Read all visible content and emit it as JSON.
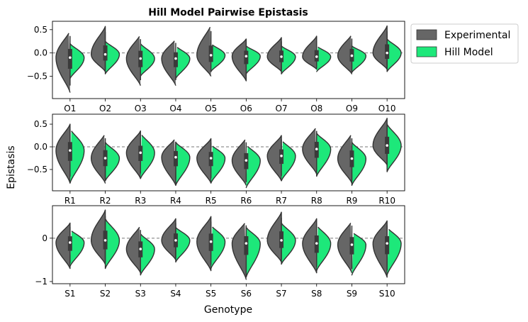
{
  "figure": {
    "title": "Hill Model Pairwise Epistasis",
    "ylabel": "Epistasis",
    "xlabel": "Genotype"
  },
  "legend": {
    "placement": "upper-right-outside",
    "entries": [
      {
        "label": "Experimental",
        "color": "#666666"
      },
      {
        "label": "Hill Model",
        "color": "#1de87a"
      }
    ]
  },
  "chart_data": [
    {
      "type": "violin",
      "split": true,
      "ylim": [
        -0.98,
        0.68
      ],
      "yticks": [
        -0.5,
        0.0,
        0.5
      ],
      "ytick_labels": [
        "−0.5",
        "0.0",
        "0.5"
      ],
      "reference_line": 0,
      "categories": [
        "O1",
        "O2",
        "O3",
        "O4",
        "O5",
        "O6",
        "O7",
        "O8",
        "O9",
        "O10"
      ],
      "series": [
        {
          "name": "Experimental",
          "medians": [
            -0.1,
            -0.03,
            -0.12,
            -0.12,
            -0.05,
            -0.07,
            -0.08,
            -0.08,
            -0.06,
            0.0
          ],
          "mins": [
            -0.85,
            -0.4,
            -0.7,
            -0.7,
            -0.5,
            -0.6,
            -0.4,
            -0.35,
            -0.45,
            -0.35
          ],
          "maxs": [
            0.48,
            0.57,
            0.4,
            0.3,
            0.6,
            0.3,
            0.33,
            0.36,
            0.4,
            0.58
          ]
        },
        {
          "name": "Hill Model",
          "medians": [
            -0.1,
            -0.03,
            -0.12,
            -0.12,
            -0.05,
            -0.07,
            -0.08,
            -0.08,
            -0.06,
            0.0
          ],
          "mins": [
            -0.55,
            -0.45,
            -0.5,
            -0.55,
            -0.4,
            -0.45,
            -0.45,
            -0.4,
            -0.42,
            -0.4
          ],
          "maxs": [
            0.2,
            0.25,
            0.2,
            0.15,
            0.2,
            0.15,
            0.15,
            0.15,
            0.15,
            0.3
          ]
        }
      ]
    },
    {
      "type": "violin",
      "split": true,
      "ylim": [
        -0.97,
        0.72
      ],
      "yticks": [
        -0.5,
        0.0,
        0.5
      ],
      "ytick_labels": [
        "−0.5",
        "0.0",
        "0.5"
      ],
      "reference_line": 0,
      "categories": [
        "R1",
        "R2",
        "R3",
        "R4",
        "R5",
        "R6",
        "R7",
        "R8",
        "R9",
        "R10"
      ],
      "series": [
        {
          "name": "Experimental",
          "medians": [
            -0.08,
            -0.25,
            -0.13,
            -0.23,
            -0.25,
            -0.3,
            -0.2,
            -0.05,
            -0.26,
            0.03
          ],
          "mins": [
            -0.8,
            -0.8,
            -0.7,
            -0.85,
            -0.8,
            -0.85,
            -0.75,
            -0.6,
            -0.8,
            -0.4
          ],
          "maxs": [
            0.5,
            0.3,
            0.35,
            0.2,
            0.18,
            0.2,
            0.25,
            0.45,
            0.3,
            0.63
          ]
        },
        {
          "name": "Hill Model",
          "medians": [
            -0.08,
            -0.25,
            -0.13,
            -0.23,
            -0.25,
            -0.3,
            -0.2,
            -0.05,
            -0.26,
            0.03
          ],
          "mins": [
            -0.8,
            -0.75,
            -0.7,
            -0.85,
            -0.8,
            -0.9,
            -0.75,
            -0.65,
            -0.85,
            -0.55
          ],
          "maxs": [
            0.4,
            0.1,
            0.3,
            0.1,
            0.05,
            0.05,
            0.15,
            0.3,
            0.1,
            0.5
          ]
        }
      ]
    },
    {
      "type": "violin",
      "split": true,
      "ylim": [
        -1.05,
        0.75
      ],
      "yticks": [
        -1,
        0
      ],
      "ytick_labels": [
        "−1",
        "0"
      ],
      "reference_line": 0,
      "categories": [
        "S1",
        "S2",
        "S3",
        "S4",
        "S5",
        "S6",
        "S7",
        "S8",
        "S9",
        "S10"
      ],
      "series": [
        {
          "name": "Experimental",
          "medians": [
            -0.1,
            -0.05,
            -0.25,
            -0.05,
            -0.08,
            -0.12,
            -0.05,
            -0.12,
            -0.15,
            -0.12
          ],
          "mins": [
            -0.7,
            -0.6,
            -0.8,
            -0.5,
            -0.75,
            -0.95,
            -0.55,
            -0.8,
            -0.8,
            -0.9
          ],
          "maxs": [
            0.35,
            0.65,
            0.3,
            0.45,
            0.5,
            0.4,
            0.6,
            0.45,
            0.4,
            0.4
          ]
        },
        {
          "name": "Hill Model",
          "medians": [
            -0.1,
            -0.05,
            -0.25,
            -0.05,
            -0.08,
            -0.12,
            -0.05,
            -0.12,
            -0.15,
            -0.12
          ],
          "mins": [
            -0.65,
            -0.7,
            -0.85,
            -0.55,
            -0.7,
            -0.9,
            -0.6,
            -0.75,
            -0.85,
            -0.85
          ],
          "maxs": [
            0.2,
            0.45,
            0.1,
            0.25,
            0.3,
            0.25,
            0.35,
            0.3,
            0.15,
            0.25
          ]
        }
      ]
    }
  ]
}
